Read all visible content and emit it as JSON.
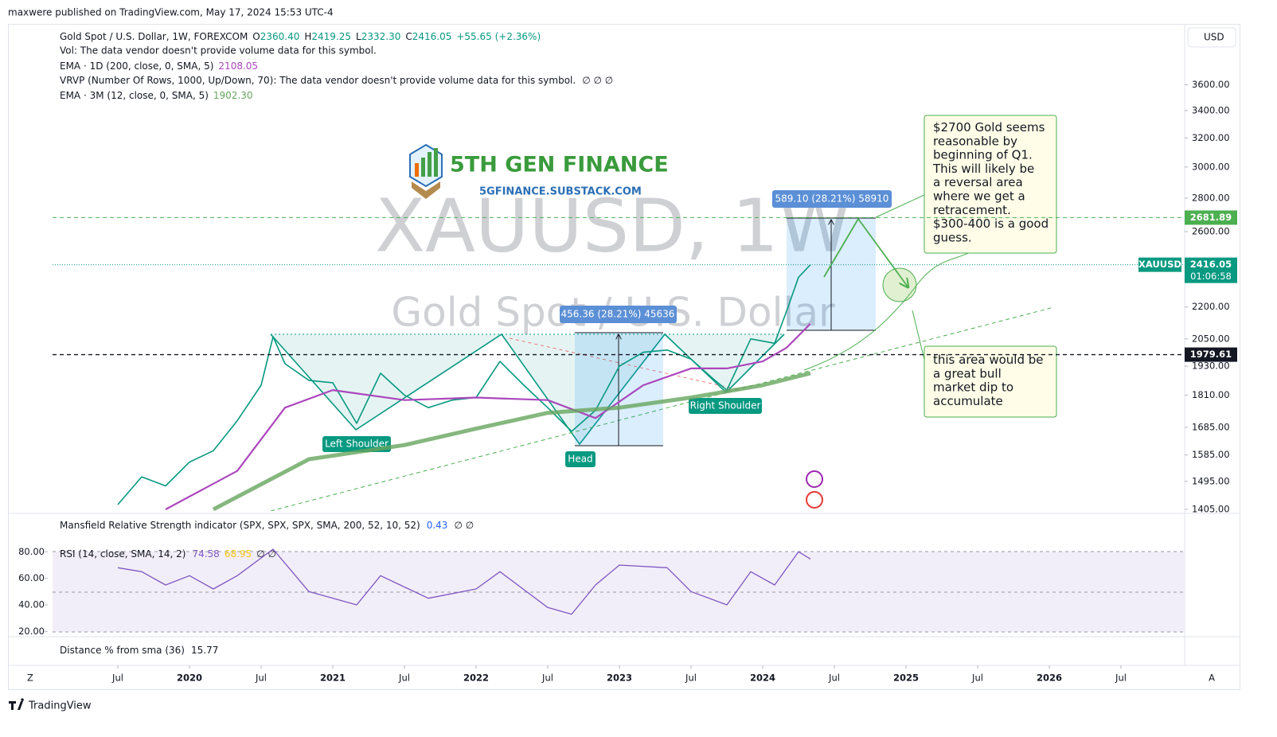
{
  "header": {
    "published": "maxwere published on TradingView.com, May 17, 2024 15:53 UTC-4",
    "currency": "USD",
    "brand": "TradingView",
    "zoom": "Z",
    "auto": "A"
  },
  "watermark": {
    "symbol": "XAUUSD, 1W",
    "description": "Gold Spot / U.S. Dollar"
  },
  "logo": {
    "name": "5TH GEN FINANCE",
    "url": "5GFINANCE.SUBSTACK.COM"
  },
  "legend": {
    "ohlc": [
      [
        "O",
        "2360.40"
      ],
      [
        "H",
        "2419.25"
      ],
      [
        "L",
        "2332.30"
      ],
      [
        "C",
        "2416.05"
      ]
    ],
    "change": "+55.65 (+2.36%)",
    "vol": "Vol: The data vendor doesn't provide volume data for this symbol.",
    "vrvp": "VRVP (Number Of Rows, 1000, Up/Down, 70): The data vendor doesn't provide volume data for this symbol.",
    "vrvp_values": "∅ ∅ ∅"
  },
  "annotations": {
    "left_shoulder": "Left Shoulder",
    "head": "Head",
    "right_shoulder": "Right Shoulder",
    "measure_mid": "456.36 (28.21%) 45636",
    "measure_top": "589.10 (28.21%) 58910",
    "callout_top": [
      "$2700 Gold seems",
      "reasonable by",
      "beginning of Q1.",
      "This will likely be",
      "a reversal area",
      "where we get a",
      "retracement.",
      "$300-400 is a good",
      "guess."
    ],
    "callout_bottom": [
      "this area would be",
      "a great bull",
      "market dip to",
      "accumulate"
    ]
  },
  "indicators": {
    "mansfield": "Mansfield Relative Strength indicator (SPX, SPX, SPX, SMA, 200, 52, 10, 52)",
    "mansfield_value": "0.43",
    "mansfield_icons": "∅ ∅",
    "distance": "Distance % from sma (36)",
    "distance_value": "15.77"
  },
  "chart_data": [
    {
      "type": "line",
      "log_scale": true,
      "xlim": [
        "2019-01",
        "2026-12"
      ],
      "xticks": [
        {
          "value": "2019-07",
          "label": "Jul"
        },
        {
          "value": "2020-01",
          "label": "2020"
        },
        {
          "value": "2020-07",
          "label": "Jul"
        },
        {
          "value": "2021-01",
          "label": "2021"
        },
        {
          "value": "2021-07",
          "label": "Jul"
        },
        {
          "value": "2022-01",
          "label": "2022"
        },
        {
          "value": "2022-07",
          "label": "Jul"
        },
        {
          "value": "2023-01",
          "label": "2023"
        },
        {
          "value": "2023-07",
          "label": "Jul"
        },
        {
          "value": "2024-01",
          "label": "2024"
        },
        {
          "value": "2024-07",
          "label": "Jul"
        },
        {
          "value": "2025-01",
          "label": "2025"
        },
        {
          "value": "2025-07",
          "label": "Jul"
        },
        {
          "value": "2026-01",
          "label": "2026"
        },
        {
          "value": "2026-07",
          "label": "Jul"
        }
      ],
      "ylim": [
        1400,
        4120
      ],
      "yticks": [
        {
          "value": 1405,
          "label": "1405.00"
        },
        {
          "value": 1495,
          "label": "1495.00"
        },
        {
          "value": 1585,
          "label": "1585.00"
        },
        {
          "value": 1685,
          "label": "1685.00"
        },
        {
          "value": 1810,
          "label": "1810.00"
        },
        {
          "value": 1930,
          "label": "1930.00"
        },
        {
          "value": 2050,
          "label": "2050.00"
        },
        {
          "value": 2200,
          "label": "2200.00"
        },
        {
          "value": 2600,
          "label": "2600.00"
        },
        {
          "value": 2800,
          "label": "2800.00"
        },
        {
          "value": 3000,
          "label": "3000.00"
        },
        {
          "value": 3200,
          "label": "3200.00"
        },
        {
          "value": 3400,
          "label": "3400.00"
        },
        {
          "value": 3600,
          "label": "3600.00"
        }
      ],
      "series": [
        {
          "name": "Gold Spot / U.S. Dollar, 1W, FOREXCOM",
          "color": "#089981",
          "x": [
            "2019-07",
            "2019-09",
            "2019-11",
            "2020-01",
            "2020-03",
            "2020-05",
            "2020-07",
            "2020-08",
            "2020-09",
            "2020-11",
            "2021-01",
            "2021-03",
            "2021-05",
            "2021-07",
            "2021-09",
            "2021-11",
            "2022-01",
            "2022-03",
            "2022-05",
            "2022-07",
            "2022-09",
            "2022-11",
            "2023-01",
            "2023-03",
            "2023-05",
            "2023-07",
            "2023-09",
            "2023-10",
            "2023-12",
            "2024-02",
            "2024-03",
            "2024-04",
            "2024-05"
          ],
          "values": [
            1420,
            1510,
            1480,
            1560,
            1600,
            1710,
            1850,
            2060,
            1940,
            1870,
            1860,
            1700,
            1900,
            1810,
            1760,
            1790,
            1800,
            1950,
            1850,
            1760,
            1670,
            1750,
            1930,
            1990,
            2000,
            1960,
            1870,
            1830,
            2050,
            2030,
            2180,
            2350,
            2416.05
          ]
        },
        {
          "name": "EMA · 1D (200, close, 0, SMA, 5)",
          "legend_value": "2108.05",
          "color": "#ab47bc",
          "x": [
            "2019-11",
            "2020-05",
            "2020-09",
            "2021-01",
            "2021-07",
            "2022-01",
            "2022-07",
            "2022-11",
            "2023-03",
            "2023-07",
            "2023-10",
            "2024-01",
            "2024-03",
            "2024-05"
          ],
          "values": [
            1405,
            1530,
            1760,
            1830,
            1790,
            1800,
            1790,
            1720,
            1850,
            1920,
            1920,
            1950,
            2010,
            2120
          ]
        },
        {
          "name": "EMA · 3M (12, close, 0, SMA, 5)",
          "legend_value": "1902.30",
          "color": "#66a55e",
          "x": [
            "2020-03",
            "2020-11",
            "2021-07",
            "2022-01",
            "2022-07",
            "2023-01",
            "2023-07",
            "2024-01",
            "2024-05"
          ],
          "values": [
            1405,
            1570,
            1620,
            1680,
            1740,
            1760,
            1800,
            1850,
            1900
          ]
        }
      ],
      "hlines": [
        2681.89,
        2416.05,
        1979.61
      ],
      "hline_colors": [
        "#4caf50",
        "#089981",
        "#131722"
      ],
      "price_tag": {
        "symbol": "XAUUSD",
        "countdown": "01:06:58"
      }
    },
    {
      "type": "line",
      "ylim": [
        16,
        88
      ],
      "yticks": [
        {
          "value": 20,
          "label": "20.00"
        },
        {
          "value": 40,
          "label": "40.00"
        },
        {
          "value": 60,
          "label": "60.00"
        },
        {
          "value": 80,
          "label": "80.00"
        }
      ],
      "series": [
        {
          "name": "RSI (14, close, SMA, 14, 2)",
          "legend_value": "74.58",
          "ma_value": "68.95",
          "icons": "∅ ∅",
          "color": "#7e57c2",
          "x": [
            "2019-07",
            "2019-09",
            "2019-11",
            "2020-01",
            "2020-03",
            "2020-05",
            "2020-08",
            "2020-11",
            "2021-03",
            "2021-05",
            "2021-09",
            "2022-01",
            "2022-03",
            "2022-07",
            "2022-09",
            "2022-11",
            "2023-01",
            "2023-05",
            "2023-07",
            "2023-10",
            "2023-12",
            "2024-02",
            "2024-04",
            "2024-05"
          ],
          "values": [
            68,
            65,
            55,
            62,
            52,
            62,
            82,
            50,
            40,
            62,
            45,
            52,
            65,
            38,
            33,
            55,
            70,
            68,
            50,
            40,
            65,
            55,
            80,
            74.58
          ]
        }
      ]
    }
  ]
}
